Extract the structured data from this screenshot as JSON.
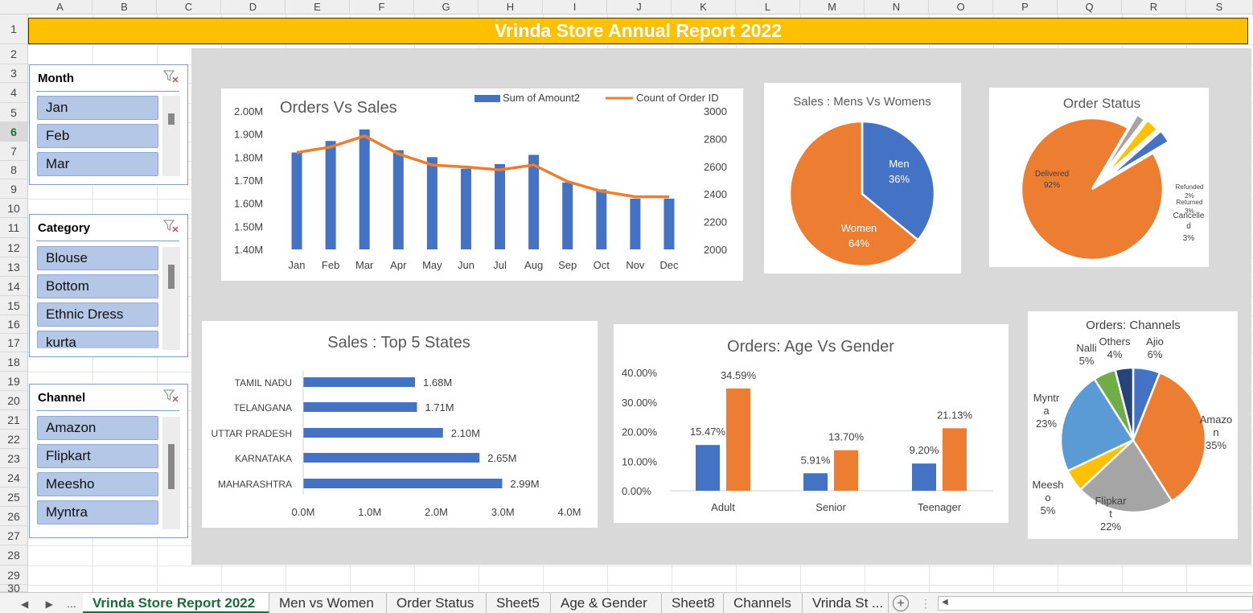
{
  "columns": [
    "A",
    "B",
    "C",
    "D",
    "E",
    "F",
    "G",
    "H",
    "I",
    "J",
    "K",
    "L",
    "M",
    "N",
    "O",
    "P",
    "Q",
    "R",
    "S"
  ],
  "rows": [
    "1",
    "2",
    "3",
    "4",
    "5",
    "6",
    "7",
    "8",
    "9",
    "10",
    "11",
    "12",
    "13",
    "14",
    "15",
    "16",
    "17",
    "18",
    "19",
    "20",
    "21",
    "22",
    "23",
    "24",
    "25",
    "26",
    "27",
    "28",
    "29",
    "30"
  ],
  "active_row": "6",
  "banner": {
    "title": "Vrinda Store Annual Report 2022"
  },
  "slicers": {
    "month": {
      "title": "Month",
      "items": [
        "Jan",
        "Feb",
        "Mar"
      ]
    },
    "category": {
      "title": "Category",
      "items": [
        "Blouse",
        "Bottom",
        "Ethnic Dress",
        "kurta"
      ]
    },
    "channel": {
      "title": "Channel",
      "items": [
        "Amazon",
        "Flipkart",
        "Meesho",
        "Myntra"
      ]
    }
  },
  "colors": {
    "blue": "#4472c4",
    "orange": "#ed7d31",
    "gray": "#a5a5a5",
    "yellow": "#ffc000",
    "lightblue": "#5b9bd5",
    "green": "#70ad47",
    "navy": "#264478",
    "accent_green": "#1e6b3a"
  },
  "chart_data": [
    {
      "id": "orders_vs_sales",
      "type": "bar",
      "title": "Orders Vs Sales",
      "categories": [
        "Jan",
        "Feb",
        "Mar",
        "Apr",
        "May",
        "Jun",
        "Jul",
        "Aug",
        "Sep",
        "Oct",
        "Nov",
        "Dec"
      ],
      "series": [
        {
          "name": "Sum of Amount2",
          "type": "bar",
          "axis": "left",
          "values": [
            1.82,
            1.87,
            1.92,
            1.83,
            1.8,
            1.75,
            1.77,
            1.81,
            1.69,
            1.66,
            1.62,
            1.62
          ]
        },
        {
          "name": "Count of Order ID",
          "type": "line",
          "axis": "right",
          "values": [
            2700,
            2740,
            2820,
            2690,
            2610,
            2595,
            2575,
            2610,
            2490,
            2420,
            2380,
            2380
          ]
        }
      ],
      "y_left_ticks": [
        "2.00M",
        "1.90M",
        "1.80M",
        "1.70M",
        "1.60M",
        "1.50M",
        "1.40M"
      ],
      "ylim_left": [
        1.4,
        2.0
      ],
      "y_right_ticks": [
        "3000",
        "2800",
        "2600",
        "2400",
        "2200",
        "2000"
      ],
      "ylim_right": [
        2000,
        3000
      ],
      "legend": "top-right"
    },
    {
      "id": "mens_vs_womens",
      "type": "pie",
      "title": "Sales : Mens Vs Womens",
      "slices": [
        {
          "label": "Men",
          "value": 36,
          "text": "36%"
        },
        {
          "label": "Women",
          "value": 64,
          "text": "64%"
        }
      ]
    },
    {
      "id": "order_status",
      "type": "pie",
      "title": "Order Status",
      "slices": [
        {
          "label": "Delivered",
          "value": 92,
          "text": "92%"
        },
        {
          "label": "Refunded",
          "value": 2,
          "text": "2%"
        },
        {
          "label": "Returned",
          "value": 3,
          "text": "3%"
        },
        {
          "label": "Cancelled",
          "value": 3,
          "text": "3%"
        }
      ]
    },
    {
      "id": "top5_states",
      "type": "bar",
      "orientation": "horizontal",
      "title": "Sales : Top 5 States",
      "categories": [
        "TAMIL NADU",
        "TELANGANA",
        "UTTAR PRADESH",
        "KARNATAKA",
        "MAHARASHTRA"
      ],
      "values": [
        1.68,
        1.71,
        2.1,
        2.65,
        2.99
      ],
      "value_labels": [
        "1.68M",
        "1.71M",
        "2.10M",
        "2.65M",
        "2.99M"
      ],
      "x_ticks": [
        "0.0M",
        "1.0M",
        "2.0M",
        "3.0M",
        "4.0M"
      ],
      "xlim": [
        0,
        4
      ]
    },
    {
      "id": "age_vs_gender",
      "type": "bar",
      "title": "Orders: Age Vs Gender",
      "categories": [
        "Adult",
        "Senior",
        "Teenager"
      ],
      "series": [
        {
          "values": [
            15.47,
            5.91,
            9.2
          ],
          "labels": [
            "15.47%",
            "5.91%",
            "9.20%"
          ]
        },
        {
          "values": [
            34.59,
            13.7,
            21.13
          ],
          "labels": [
            "34.59%",
            "13.70%",
            "21.13%"
          ]
        }
      ],
      "y_ticks": [
        "40.00%",
        "30.00%",
        "20.00%",
        "10.00%",
        "0.00%"
      ],
      "ylim": [
        0,
        40
      ]
    },
    {
      "id": "channels",
      "type": "pie",
      "title": "Orders: Channels",
      "slices": [
        {
          "label": "Ajio",
          "value": 6,
          "text": "6%"
        },
        {
          "label": "Amazon",
          "value": 35,
          "text": "35%"
        },
        {
          "label": "Flipkart",
          "value": 22,
          "text": "22%"
        },
        {
          "label": "Meesho",
          "value": 5,
          "text": "5%"
        },
        {
          "label": "Myntra",
          "value": 23,
          "text": "23%"
        },
        {
          "label": "Nalli",
          "value": 5,
          "text": "5%"
        },
        {
          "label": "Others",
          "value": 4,
          "text": "4%"
        }
      ]
    }
  ],
  "tabs": [
    "Vrinda Store Report 2022",
    "Men vs Women",
    "Order Status",
    "Sheet5",
    "Age & Gender",
    "Sheet8",
    "Channels",
    "Vrinda St ..."
  ],
  "tab_nav": {
    "prev": "◀",
    "next": "▶",
    "more": "...",
    "add": "+",
    "menu": "⋮"
  }
}
